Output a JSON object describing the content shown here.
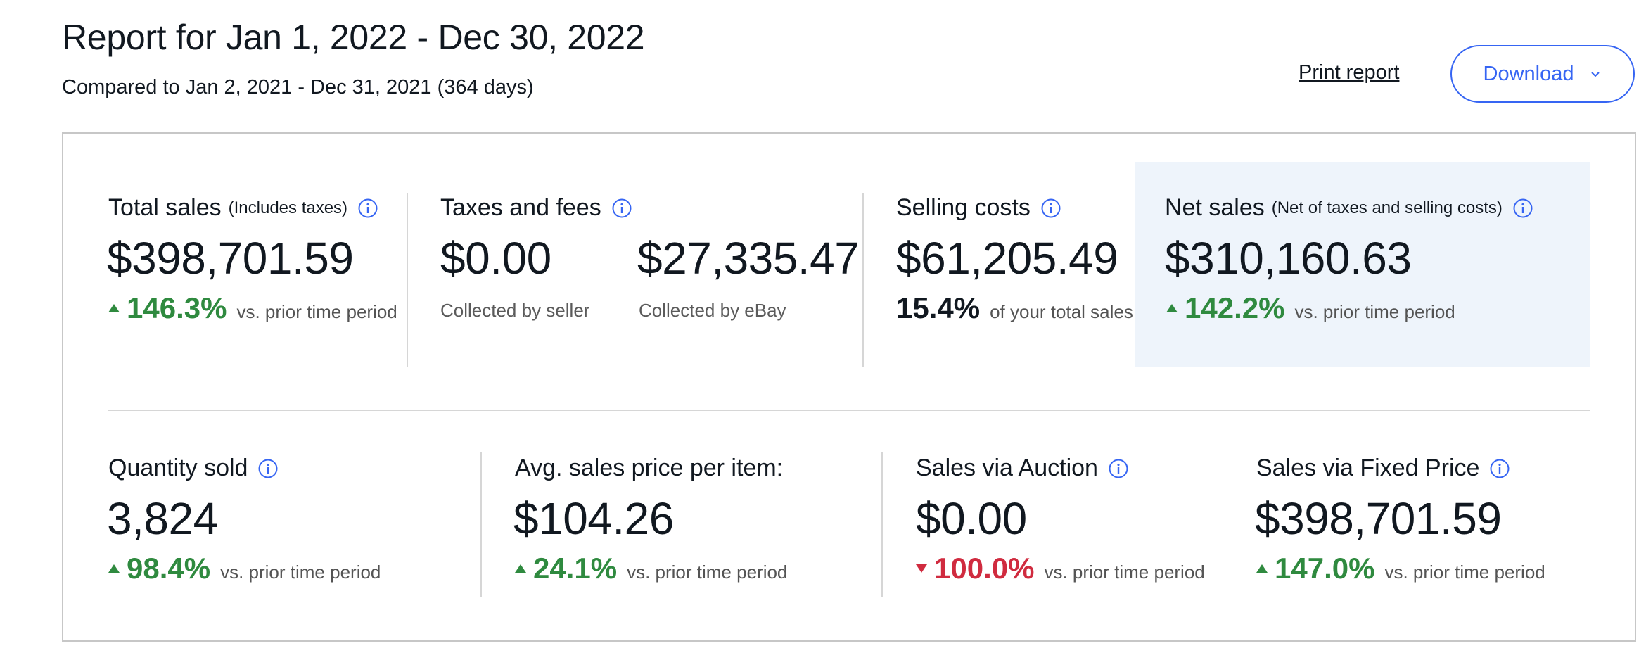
{
  "header": {
    "title": "Report for Jan 1, 2022 - Dec 30, 2022",
    "subtitle": "Compared to Jan 2, 2021 - Dec 31, 2021 (364 days)",
    "print_label": "Print report",
    "download_label": "Download"
  },
  "colors": {
    "accent": "#3665f3",
    "positive": "#2f8a3f",
    "negative": "#d02b3f",
    "highlight_bg": "#eef4fb"
  },
  "top_metrics": {
    "total_sales": {
      "label": "Total sales",
      "sublabel": "(Includes taxes)",
      "value": "$398,701.59",
      "change": "146.3%",
      "direction": "up",
      "comparison": "vs. prior time period"
    },
    "taxes_fees": {
      "label": "Taxes and fees",
      "seller_value": "$0.00",
      "seller_caption": "Collected by seller",
      "ebay_value": "$27,335.47",
      "ebay_caption": "Collected by eBay"
    },
    "selling_costs": {
      "label": "Selling costs",
      "value": "$61,205.49",
      "percent": "15.4%",
      "percent_caption": "of your total sales"
    },
    "net_sales": {
      "label": "Net sales",
      "sublabel": "(Net of taxes and selling costs)",
      "value": "$310,160.63",
      "change": "142.2%",
      "direction": "up",
      "comparison": "vs. prior time period"
    }
  },
  "bottom_metrics": {
    "quantity_sold": {
      "label": "Quantity sold",
      "value": "3,824",
      "change": "98.4%",
      "direction": "up",
      "comparison": "vs. prior time period"
    },
    "avg_price": {
      "label": "Avg. sales price per item:",
      "value": "$104.26",
      "change": "24.1%",
      "direction": "up",
      "comparison": "vs. prior time period"
    },
    "auction": {
      "label": "Sales via Auction",
      "value": "$0.00",
      "change": "100.0%",
      "direction": "down",
      "comparison": "vs. prior time period"
    },
    "fixed_price": {
      "label": "Sales via Fixed Price",
      "value": "$398,701.59",
      "change": "147.0%",
      "direction": "up",
      "comparison": "vs. prior time period"
    }
  },
  "icons": {
    "info": "info-icon",
    "download_chevron": "chevron-down-icon",
    "up": "triangle-up-icon",
    "down": "triangle-down-icon"
  }
}
